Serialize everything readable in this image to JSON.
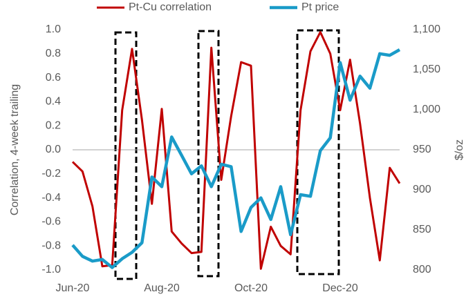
{
  "chart_data": {
    "type": "line",
    "y_label": "Correlation, 4-week trailing",
    "y2_label": "$/oz",
    "categories": [
      "Jun-20",
      null,
      null,
      null,
      null,
      null,
      null,
      null,
      null,
      "Aug-20",
      null,
      null,
      null,
      null,
      null,
      null,
      null,
      null,
      "Oct-20",
      null,
      null,
      null,
      null,
      null,
      null,
      null,
      null,
      "Dec-20",
      null,
      null,
      null,
      null,
      null,
      null
    ],
    "series": [
      {
        "name": "Pt-Cu correlation",
        "color": "#c00000",
        "axis": "y",
        "values": [
          -0.1,
          -0.18,
          -0.47,
          -0.97,
          -0.96,
          0.33,
          0.84,
          0.25,
          -0.45,
          0.34,
          -0.68,
          -0.78,
          -0.86,
          -0.85,
          0.85,
          -0.25,
          0.28,
          0.73,
          0.7,
          -0.99,
          -0.64,
          -0.8,
          -0.87,
          0.33,
          0.82,
          0.98,
          0.8,
          0.33,
          0.75,
          0.22,
          -0.4,
          -0.92,
          -0.15,
          -0.28
        ]
      },
      {
        "name": "Pt price",
        "color": "#1a9bc8",
        "axis": "y2",
        "values": [
          831,
          817,
          811,
          813,
          803,
          814,
          822,
          834,
          916,
          904,
          966,
          943,
          920,
          930,
          904,
          932,
          929,
          848,
          878,
          890,
          863,
          904,
          844,
          894,
          892,
          949,
          965,
          1059,
          1012,
          1042,
          1027,
          1070,
          1068,
          1075
        ]
      }
    ],
    "ylim": [
      -1,
      1
    ],
    "yticks": [
      {
        "value": -1,
        "label": "-1.0"
      },
      -0.8,
      -0.6,
      -0.4,
      -0.2,
      {
        "value": 0,
        "label": "0.0"
      },
      0.2,
      0.4,
      0.6,
      0.8,
      {
        "value": 1,
        "label": "1.0"
      }
    ],
    "y2lim": [
      800,
      1100
    ],
    "y2ticks": [
      800,
      850,
      900,
      950,
      {
        "value": 1000,
        "label": "1,000"
      },
      {
        "value": 1050,
        "label": "1,050"
      },
      {
        "value": 1100,
        "label": "1,100"
      }
    ],
    "zero_line": true,
    "legend": "top"
  }
}
